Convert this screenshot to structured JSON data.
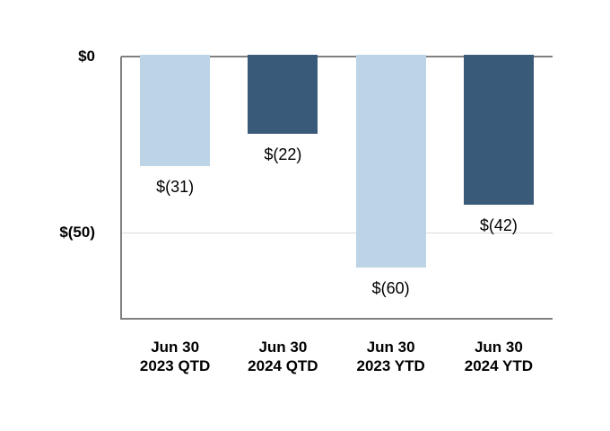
{
  "chart_data": {
    "type": "bar",
    "title": "",
    "orientation": "vertical",
    "categories": [
      "Jun 30\n2023 QTD",
      "Jun 30\n2024 QTD",
      "Jun 30\n2023 YTD",
      "Jun 30\n2024 YTD"
    ],
    "values": [
      -31,
      -22,
      -60,
      -42
    ],
    "data_labels": [
      "$(31)",
      "$(22)",
      "$(60)",
      "$(42)"
    ],
    "series_colors": [
      "#BCD4E6",
      "#3A5A7A",
      "#BCD4E6",
      "#3A5A7A"
    ],
    "y_ticks": [
      {
        "label": "$0",
        "value": 0
      },
      {
        "label": "$(50)",
        "value": -50
      }
    ],
    "ylim": [
      0,
      -75
    ],
    "xlabel": "",
    "ylabel": "",
    "grid": "horizontal",
    "legend": "none",
    "colors": {
      "light_bar": "#BCD4E6",
      "dark_bar": "#3A5A7A",
      "axis_line": "#808080",
      "gridline": "#D9D9D9",
      "text": "#000000",
      "background": "#FFFFFF"
    }
  }
}
